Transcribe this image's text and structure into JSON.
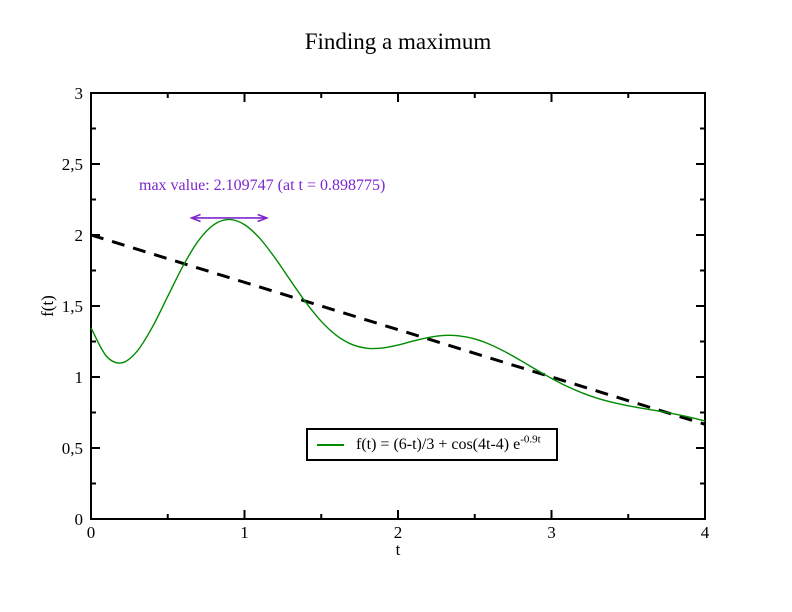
{
  "page": {
    "background": "#ffffff"
  },
  "chart_data": {
    "type": "line",
    "title": "Finding a maximum",
    "xlabel": "t",
    "ylabel": "f(t)",
    "xlim": [
      0,
      4
    ],
    "ylim": [
      0,
      3
    ],
    "grid": false,
    "frame_color": "#000000",
    "x_ticks": {
      "major": [
        {
          "v": 0,
          "label": "0"
        },
        {
          "v": 1,
          "label": "1"
        },
        {
          "v": 2,
          "label": "2"
        },
        {
          "v": 3,
          "label": "3"
        },
        {
          "v": 4,
          "label": "4"
        }
      ],
      "minor": [
        0.5,
        1.5,
        2.5,
        3.5
      ]
    },
    "y_ticks": {
      "major": [
        {
          "v": 0,
          "label": "0"
        },
        {
          "v": 0.5,
          "label": "0,5"
        },
        {
          "v": 1,
          "label": "1"
        },
        {
          "v": 1.5,
          "label": "1,5"
        },
        {
          "v": 2,
          "label": "2"
        },
        {
          "v": 2.5,
          "label": "2,5"
        },
        {
          "v": 3,
          "label": "3"
        }
      ],
      "minor": [
        0.25,
        0.75,
        1.25,
        1.75,
        2.25,
        2.75
      ]
    },
    "series": [
      {
        "name": "(6-t)/3",
        "color": "#000000",
        "style": "dashed",
        "width": 3,
        "smooth": false,
        "x": [
          0,
          4
        ],
        "y": [
          2,
          0.6667
        ]
      },
      {
        "name": "f(t) = (6-t)/3 + cos(4t-4) e^-0.9t",
        "color": "#008B00",
        "style": "solid",
        "width": 1.4,
        "smooth": true,
        "x": [
          0,
          0.1,
          0.2,
          0.3,
          0.4,
          0.5,
          0.6,
          0.7,
          0.8,
          0.9,
          1.0,
          1.1,
          1.2,
          1.3,
          1.4,
          1.5,
          1.6,
          1.7,
          1.8,
          1.9,
          2.0,
          2.1,
          2.2,
          2.3,
          2.4,
          2.5,
          2.6,
          2.7,
          2.8,
          2.9,
          3.0,
          3.1,
          3.2,
          3.3,
          3.4,
          3.5,
          3.6,
          3.7,
          3.8,
          3.9,
          4.0
        ],
        "y": [
          1.3464,
          1.1471,
          1.0995,
          1.1807,
          1.3522,
          1.568,
          1.783,
          1.9597,
          2.0725,
          2.1097,
          2.0732,
          1.9756,
          1.8366,
          1.6791,
          1.5251,
          1.3921,
          1.292,
          1.2293,
          1.2024,
          1.2045,
          1.2253,
          1.2536,
          1.2787,
          1.2925,
          1.2894,
          1.2679,
          1.229,
          1.1765,
          1.1156,
          1.0518,
          0.9902,
          0.9348,
          0.8878,
          0.85,
          0.8205,
          0.7974,
          0.778,
          0.7597,
          0.74,
          0.717,
          0.6897
        ]
      }
    ],
    "max_point": {
      "t": 0.898775,
      "f": 2.109747
    },
    "annotation": {
      "text": "max value: 2.109747 (at t = 0.898775)",
      "color": "#7D26CD"
    },
    "arrow": {
      "t1": 0.655,
      "t2": 1.145,
      "f": 2.12,
      "color": "#7D26CD"
    },
    "legend": {
      "position": "inside-bottom-center",
      "entries": [
        {
          "label_main": "f(t) = (6-t)/3 + cos(4t-4) e",
          "label_sup": "-0.9t",
          "color": "#008B00"
        }
      ]
    }
  }
}
